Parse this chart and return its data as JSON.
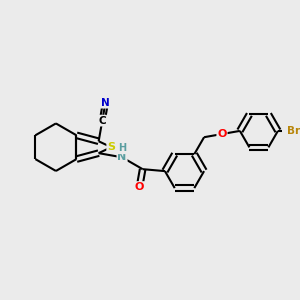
{
  "bg_color": "#ebebeb",
  "atom_colors": {
    "C": "#000000",
    "N": "#0000cc",
    "S": "#cccc00",
    "O": "#ff0000",
    "Br": "#b8860b",
    "H": "#5a9ea0"
  },
  "bond_color": "#000000",
  "figsize": [
    3.0,
    3.0
  ],
  "dpi": 100
}
